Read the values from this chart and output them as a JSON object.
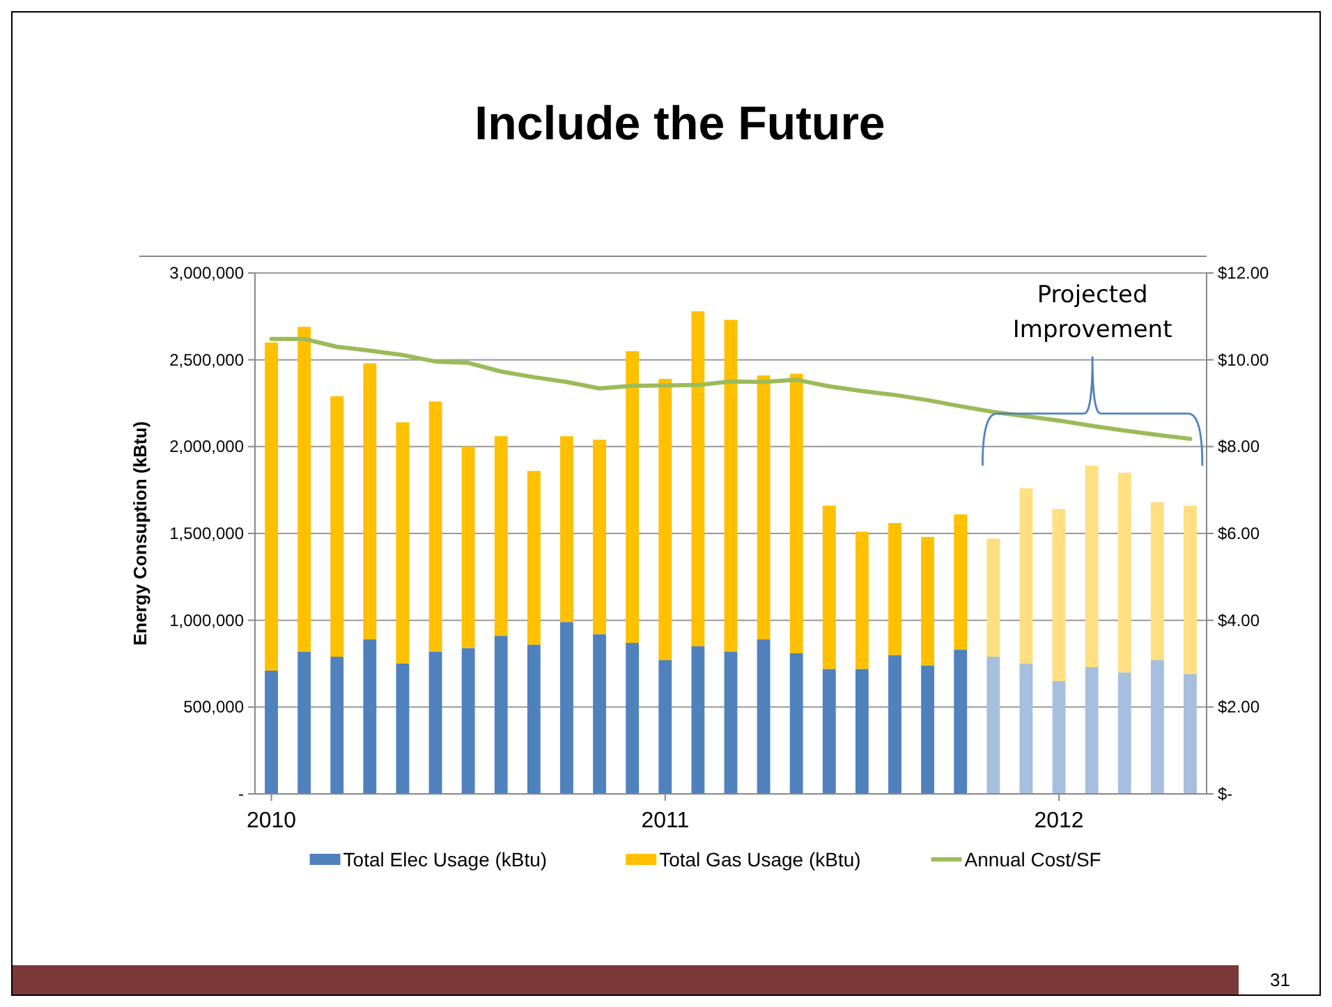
{
  "chart_data": {
    "type": "bar",
    "title": "Include the Future",
    "ylabel": "Energy Consuption (kBtu)",
    "categories": [
      "2010",
      null,
      null,
      null,
      null,
      null,
      null,
      null,
      null,
      null,
      null,
      null,
      "2011",
      null,
      null,
      null,
      null,
      null,
      null,
      null,
      null,
      null,
      null,
      null,
      "2012",
      null,
      null,
      null,
      null
    ],
    "stacked": true,
    "grid": "y",
    "legend": "bottom",
    "series": [
      {
        "name": "Total Elec Usage (kBtu)",
        "color": "#4f81bd",
        "colors": [
          "#4f81bd",
          "#4f81bd",
          "#4f81bd",
          "#4f81bd",
          "#4f81bd",
          "#4f81bd",
          "#4f81bd",
          "#4f81bd",
          "#4f81bd",
          "#4f81bd",
          "#4f81bd",
          "#4f81bd",
          "#4f81bd",
          "#4f81bd",
          "#4f81bd",
          "#4f81bd",
          "#4f81bd",
          "#4f81bd",
          "#4f81bd",
          "#4f81bd",
          "#4f81bd",
          "#4f81bd",
          "#a7bfde",
          "#a7bfde",
          "#a7bfde",
          "#a7bfde",
          "#a7bfde",
          "#a7bfde",
          "#a7bfde"
        ],
        "values": [
          710000,
          820000,
          790000,
          890000,
          750000,
          820000,
          840000,
          910000,
          860000,
          990000,
          920000,
          870000,
          770000,
          850000,
          820000,
          890000,
          810000,
          720000,
          720000,
          800000,
          740000,
          830000,
          790000,
          750000,
          650000,
          730000,
          700000,
          770000,
          690000
        ]
      },
      {
        "name": "Total Gas Usage (kBtu)",
        "color": "#ffc000",
        "colors": [
          "#ffc000",
          "#ffc000",
          "#ffc000",
          "#ffc000",
          "#ffc000",
          "#ffc000",
          "#ffc000",
          "#ffc000",
          "#ffc000",
          "#ffc000",
          "#ffc000",
          "#ffc000",
          "#ffc000",
          "#ffc000",
          "#ffc000",
          "#ffc000",
          "#ffc000",
          "#ffc000",
          "#ffc000",
          "#ffc000",
          "#ffc000",
          "#ffc000",
          "#ffdf80",
          "#ffdf80",
          "#ffdf80",
          "#ffdf80",
          "#ffdf80",
          "#ffdf80",
          "#ffdf80"
        ],
        "values": [
          1890000,
          1870000,
          1500000,
          1590000,
          1390000,
          1440000,
          1160000,
          1150000,
          1000000,
          1070000,
          1120000,
          1680000,
          1620000,
          1930000,
          1910000,
          1520000,
          1610000,
          940000,
          790000,
          760000,
          740000,
          780000,
          680000,
          1010000,
          990000,
          1160000,
          1150000,
          910000,
          970000
        ]
      },
      {
        "name": "Annual Cost/SF",
        "type": "line",
        "axis": "y2",
        "color": "#9bbb59",
        "values": [
          10.48,
          10.48,
          10.3,
          10.21,
          10.11,
          9.96,
          9.93,
          9.73,
          9.6,
          9.49,
          9.34,
          9.4,
          9.41,
          9.42,
          9.5,
          9.49,
          9.54,
          9.39,
          9.28,
          9.19,
          9.07,
          8.93,
          8.8,
          8.7,
          8.6,
          8.48,
          8.37,
          8.27,
          8.18
        ]
      }
    ],
    "ylim": [
      0,
      3000000
    ],
    "yticks": [
      {
        "value": 0,
        "label": "-"
      },
      {
        "value": 500000,
        "label": "500,000"
      },
      {
        "value": 1000000,
        "label": "1,000,000"
      },
      {
        "value": 1500000,
        "label": "1,500,000"
      },
      {
        "value": 2000000,
        "label": "2,000,000"
      },
      {
        "value": 2500000,
        "label": "2,500,000"
      },
      {
        "value": 3000000,
        "label": "3,000,000"
      }
    ],
    "y2lim": [
      0,
      12
    ],
    "y2ticks": [
      {
        "value": 0,
        "label": "$-"
      },
      {
        "value": 2,
        "label": "$2.00"
      },
      {
        "value": 4,
        "label": "$4.00"
      },
      {
        "value": 6,
        "label": "$6.00"
      },
      {
        "value": 8,
        "label": "$8.00"
      },
      {
        "value": 10,
        "label": "$10.00"
      },
      {
        "value": 12,
        "label": "$12.00"
      }
    ],
    "annotations": [
      "Projected Improvement",
      "31"
    ]
  }
}
